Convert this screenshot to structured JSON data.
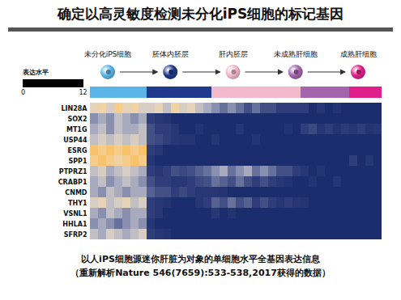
{
  "chart_data": {
    "type": "heatmap",
    "title": "确定以高灵敏度检测未分化iPS细胞的标记基因",
    "stages": [
      {
        "name": "未分化iPS细胞",
        "color": "#5ab4e6"
      },
      {
        "name": "胚体内胚层",
        "color": "#1f3a8a"
      },
      {
        "name": "肝内胚层",
        "color": "#f2b8cc"
      },
      {
        "name": "未成熟肝细胞",
        "color": "#a565ad"
      },
      {
        "name": "成熟肝细胞",
        "color": "#e0208a"
      }
    ],
    "column_stages": [
      "未分化iPS细胞",
      "未分化iPS细胞",
      "未分化iPS细胞",
      "未分化iPS细胞",
      "未分化iPS细胞",
      "未分化iPS细胞",
      "未分化iPS细胞",
      "胚体内胚层",
      "胚体内胚层",
      "胚体内胚层",
      "胚体内胚层",
      "胚体内胚层",
      "胚体内胚层",
      "胚体内胚层",
      "胚体内胚层",
      "肝内胚层",
      "肝内胚层",
      "肝内胚层",
      "肝内胚层",
      "肝内胚层",
      "肝内胚层",
      "肝内胚层",
      "肝内胚层",
      "肝内胚层",
      "肝内胚层",
      "肝内胚层",
      "未成熟肝细胞",
      "未成熟肝细胞",
      "未成熟肝细胞",
      "未成熟肝细胞",
      "未成熟肝细胞",
      "未成熟肝细胞",
      "成熟肝细胞",
      "成熟肝细胞",
      "成熟肝细胞",
      "成熟肝细胞"
    ],
    "rows": [
      "LIN28A",
      "SOX2",
      "MT1G",
      "USP44",
      "ESRG",
      "SPP1",
      "PTPRZ1",
      "CRABP1",
      "CNMD",
      "THY1",
      "VSNL1",
      "HHLA1",
      "SFRP2"
    ],
    "cells": [
      [
        7,
        8,
        6,
        9,
        7,
        8,
        6,
        6,
        7,
        5,
        8,
        6,
        7,
        5,
        4,
        3,
        2,
        3,
        2,
        1,
        2,
        1,
        1,
        0.5,
        0.5,
        0.5,
        0.5,
        0,
        0.3,
        0,
        0.2,
        0,
        0,
        0,
        0,
        0
      ],
      [
        3,
        4,
        3,
        5,
        4,
        3,
        4,
        0.5,
        0.3,
        0.2,
        0,
        0,
        0,
        0,
        0,
        0,
        0,
        0,
        0,
        0,
        0,
        0,
        0,
        0,
        0,
        0,
        0,
        0,
        0,
        0,
        0,
        0,
        0,
        0,
        0,
        0
      ],
      [
        4,
        5,
        3,
        5,
        4,
        4,
        5,
        1,
        0.5,
        0.5,
        0.3,
        0,
        0,
        0.2,
        0,
        0,
        0,
        0,
        0.3,
        0,
        0,
        0,
        0,
        0,
        0.2,
        0,
        0.5,
        0.8,
        0.3,
        0.5,
        0.2,
        0.4,
        0.3,
        0.5,
        0.2,
        0.3
      ],
      [
        5,
        6,
        5,
        6,
        5,
        6,
        5,
        1,
        0.8,
        0.5,
        0.3,
        0.2,
        0.2,
        0,
        0,
        0.3,
        0,
        0,
        0,
        0,
        0.2,
        0,
        0,
        0,
        0,
        0,
        0,
        0,
        0,
        0,
        0,
        0,
        0,
        0,
        0,
        0
      ],
      [
        10,
        9,
        10,
        9,
        10,
        9,
        10,
        0.5,
        0.3,
        0,
        0,
        0,
        0,
        0,
        0,
        0,
        0,
        0,
        0,
        0,
        0,
        0,
        0,
        0,
        0,
        0,
        0,
        0,
        0,
        0,
        0,
        0,
        0,
        0,
        0,
        0
      ],
      [
        9,
        10,
        9,
        8,
        9,
        10,
        9,
        0.3,
        0,
        0,
        0,
        0,
        0,
        0,
        0,
        0,
        0,
        0,
        0,
        0,
        0,
        0,
        0,
        0,
        0,
        0,
        0,
        0,
        0,
        0,
        0,
        0,
        0.5,
        0,
        0.3,
        0
      ],
      [
        5,
        6,
        4,
        5,
        6,
        5,
        4,
        0.5,
        0.3,
        0.5,
        1,
        0.8,
        1,
        1.5,
        2,
        3,
        4,
        2,
        3,
        4,
        2,
        3,
        2,
        1,
        1,
        0.5,
        0.3,
        0,
        0.2,
        0,
        0,
        0,
        0,
        0,
        0,
        0
      ],
      [
        4,
        5,
        3,
        4,
        5,
        4,
        3,
        1,
        0.5,
        0.5,
        0.3,
        0.3,
        0.5,
        0.8,
        1,
        2,
        1.5,
        1,
        2,
        1,
        0.5,
        1,
        0.5,
        0.3,
        0.2,
        0,
        0,
        0.2,
        0,
        0,
        0.3,
        0,
        0,
        0,
        0,
        0
      ],
      [
        4,
        3,
        5,
        4,
        3,
        4,
        4,
        1.5,
        1,
        1,
        0.5,
        0.8,
        0.5,
        0.3,
        0.3,
        0.3,
        0.2,
        0,
        0,
        0,
        0,
        0,
        0,
        0,
        0,
        0,
        0,
        0,
        0,
        0,
        0,
        0,
        0,
        0,
        0,
        0
      ],
      [
        6,
        7,
        5,
        6,
        7,
        5,
        6,
        0.5,
        0.3,
        0.2,
        0,
        0,
        0,
        0.3,
        0.5,
        1.5,
        1,
        2,
        1,
        1.5,
        0.5,
        1,
        0.5,
        0.3,
        0.5,
        0.3,
        0.2,
        0,
        0,
        0,
        0,
        0,
        0,
        0,
        0,
        0
      ],
      [
        4,
        3,
        5,
        4,
        3,
        4,
        4,
        0.5,
        0.3,
        0,
        0,
        0,
        0,
        0,
        0,
        0.3,
        0,
        0.2,
        0,
        0,
        0,
        0,
        0,
        0,
        0,
        0,
        0,
        0,
        0,
        0,
        0,
        0,
        0,
        0,
        0,
        0
      ],
      [
        3,
        4,
        3,
        2,
        3,
        4,
        3,
        0.3,
        0,
        0,
        0,
        0,
        0,
        0,
        0,
        0,
        0,
        0,
        0,
        0,
        0,
        0,
        0,
        0,
        0,
        0,
        0,
        0,
        0,
        0,
        0,
        0,
        0,
        0,
        0,
        0
      ],
      [
        5,
        4,
        6,
        5,
        4,
        5,
        6,
        0.5,
        0.3,
        0.2,
        0,
        0,
        0,
        0,
        0,
        0,
        0,
        0,
        0,
        0,
        0,
        0,
        0,
        0,
        0,
        0,
        0,
        0,
        0,
        0,
        0,
        0,
        0,
        0,
        0,
        0
      ]
    ],
    "colorbar": {
      "label": "表达水平",
      "range": [
        0,
        12
      ],
      "ticks": [
        0,
        12
      ],
      "colors": [
        "#1c2d6e",
        "#ffffff",
        "#f5a623"
      ]
    },
    "caption": [
      "以人iPS细胞源迷你肝脏为对象的单细胞水平全基因表达信息",
      "（重新解析Nature 546(7659):533-538,2017获得的数据）"
    ]
  }
}
